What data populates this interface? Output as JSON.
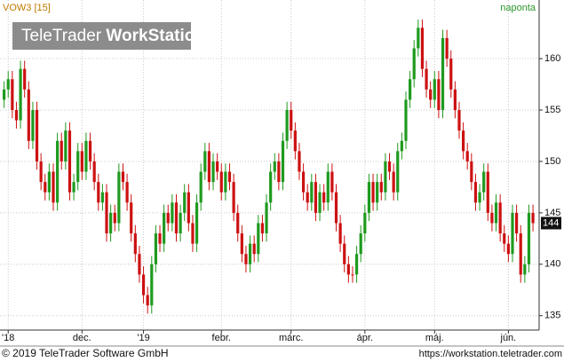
{
  "chart_data": {
    "type": "candlestick",
    "title": "VOW3 [15]",
    "interval": "naponta",
    "watermark": {
      "brand": "TeleTrader",
      "product": "WorkStation"
    },
    "footer": {
      "copyright": "© 2019 TeleTrader Software GmbH",
      "url": "https://workstation.teletrader.com"
    },
    "up_color": "#1f9a1f",
    "down_color": "#cc1111",
    "grid": true,
    "xlim": [
      -1,
      130.5
    ],
    "xticks": [
      {
        "value": 1,
        "label": "'18"
      },
      {
        "value": 19,
        "label": "dec."
      },
      {
        "value": 34,
        "label": "'19"
      },
      {
        "value": 53,
        "label": "febr."
      },
      {
        "value": 70,
        "label": "márc."
      },
      {
        "value": 88,
        "label": "ápr."
      },
      {
        "value": 105,
        "label": "máj."
      },
      {
        "value": 123,
        "label": "jún."
      }
    ],
    "ylim": [
      133.6,
      165.7
    ],
    "yticks": [
      135,
      140,
      145,
      150,
      155,
      160
    ],
    "open": [
      156,
      157,
      158,
      155,
      154,
      159,
      157,
      152,
      155,
      150,
      148,
      147,
      149,
      146,
      152,
      150,
      153,
      147,
      148,
      151,
      149,
      152,
      150,
      148,
      146,
      147,
      143,
      145,
      144,
      149,
      148,
      146,
      143,
      141,
      139,
      137,
      136,
      140,
      143,
      142,
      145,
      144,
      146,
      143,
      145,
      147,
      144,
      142,
      146,
      149,
      151,
      148,
      150,
      149,
      147,
      149,
      148,
      145,
      143,
      141,
      140,
      142,
      141,
      144,
      143,
      146,
      149,
      150,
      148,
      152,
      155,
      153,
      151,
      149,
      147,
      146,
      148,
      145,
      147,
      146,
      149,
      147,
      144,
      142,
      140,
      139,
      139,
      141,
      143,
      145,
      148,
      146,
      148,
      147,
      150,
      149,
      147,
      151,
      152,
      156,
      158,
      161,
      163,
      159,
      157,
      156,
      158,
      155,
      162,
      160,
      157,
      155,
      153,
      151,
      150,
      148,
      146,
      147,
      149,
      145,
      144,
      146,
      143,
      142,
      141,
      145,
      143,
      139,
      140,
      145
    ],
    "high": [
      157.8,
      158.8,
      158.8,
      155.8,
      159.8,
      159.8,
      157.8,
      155.8,
      155.8,
      150.8,
      148.8,
      149.8,
      149.8,
      152.8,
      152.8,
      153.8,
      153.8,
      148.8,
      151.8,
      151.8,
      152.8,
      152.8,
      150.8,
      148.8,
      147.8,
      147.8,
      145.8,
      145.8,
      149.8,
      149.8,
      148.8,
      146.8,
      143.8,
      141.8,
      139.8,
      137.8,
      140.8,
      143.8,
      143.8,
      145.8,
      145.8,
      146.8,
      146.8,
      145.8,
      147.8,
      147.8,
      144.8,
      146.8,
      149.8,
      151.8,
      151.8,
      150.8,
      150.8,
      149.8,
      149.8,
      149.8,
      148.8,
      145.8,
      143.8,
      141.8,
      142.8,
      142.8,
      144.8,
      144.8,
      146.8,
      149.8,
      150.8,
      150.8,
      152.8,
      155.8,
      155.8,
      153.8,
      151.8,
      149.8,
      147.8,
      148.8,
      148.8,
      147.8,
      147.8,
      149.8,
      149.8,
      147.8,
      144.8,
      142.8,
      140.8,
      139.8,
      141.8,
      143.8,
      145.8,
      148.8,
      148.8,
      148.8,
      148.8,
      150.8,
      150.8,
      149.8,
      151.8,
      152.8,
      156.8,
      158.8,
      161.8,
      163.8,
      163.8,
      159.8,
      157.8,
      158.8,
      158.8,
      162.8,
      162.8,
      160.8,
      157.8,
      155.8,
      153.8,
      151.8,
      150.8,
      148.8,
      147.8,
      149.8,
      149.8,
      145.8,
      146.8,
      146.8,
      143.8,
      142.8,
      145.8,
      145.8,
      143.8,
      140.8,
      145.8,
      145.8
    ],
    "low": [
      155.2,
      156.2,
      154.2,
      153.2,
      153.2,
      156.2,
      151.2,
      151.2,
      149.2,
      147.2,
      146.2,
      146.2,
      145.2,
      145.2,
      149.2,
      149.2,
      146.2,
      146.2,
      147.2,
      148.2,
      148.2,
      149.2,
      147.2,
      145.2,
      145.2,
      142.2,
      142.2,
      143.2,
      143.2,
      147.2,
      145.2,
      142.2,
      140.2,
      138.2,
      136.2,
      135.2,
      135.2,
      139.2,
      141.2,
      141.2,
      143.2,
      143.2,
      142.2,
      142.2,
      144.2,
      143.2,
      141.2,
      141.2,
      145.2,
      148.2,
      147.2,
      147.2,
      148.2,
      146.2,
      146.2,
      147.2,
      144.2,
      142.2,
      140.2,
      139.2,
      139.2,
      140.2,
      140.2,
      142.2,
      142.2,
      145.2,
      148.2,
      147.2,
      147.2,
      151.2,
      152.2,
      150.2,
      148.2,
      146.2,
      145.2,
      145.2,
      144.2,
      144.2,
      145.2,
      145.2,
      146.2,
      143.2,
      141.2,
      139.2,
      138.2,
      138.2,
      138.2,
      140.2,
      142.2,
      144.2,
      145.2,
      145.2,
      146.2,
      146.2,
      148.2,
      146.2,
      146.2,
      150.2,
      151.2,
      155.2,
      157.2,
      160.2,
      158.2,
      156.2,
      155.2,
      155.2,
      154.2,
      154.2,
      159.2,
      156.2,
      154.2,
      152.2,
      150.2,
      149.2,
      147.2,
      145.2,
      145.2,
      146.2,
      144.2,
      143.2,
      143.2,
      142.2,
      141.2,
      140.2,
      140.2,
      142.2,
      138.2,
      138.2,
      139.2,
      143.2
    ],
    "close": [
      157,
      158,
      155,
      154,
      159,
      157,
      152,
      155,
      150,
      148,
      147,
      149,
      146,
      152,
      150,
      153,
      147,
      148,
      151,
      149,
      152,
      150,
      148,
      146,
      147,
      143,
      145,
      144,
      149,
      148,
      146,
      143,
      141,
      139,
      137,
      136,
      140,
      143,
      142,
      145,
      144,
      146,
      143,
      145,
      147,
      144,
      142,
      146,
      149,
      151,
      148,
      150,
      149,
      147,
      149,
      148,
      145,
      143,
      141,
      140,
      142,
      141,
      144,
      143,
      146,
      149,
      150,
      148,
      152,
      155,
      153,
      151,
      149,
      147,
      146,
      148,
      145,
      147,
      146,
      149,
      147,
      144,
      142,
      140,
      139,
      139,
      141,
      143,
      145,
      148,
      146,
      148,
      147,
      150,
      149,
      147,
      151,
      152,
      156,
      158,
      161,
      163,
      159,
      157,
      156,
      158,
      155,
      162,
      160,
      157,
      155,
      153,
      151,
      150,
      148,
      146,
      147,
      149,
      145,
      144,
      146,
      143,
      142,
      141,
      145,
      143,
      139,
      140,
      145,
      144
    ]
  }
}
